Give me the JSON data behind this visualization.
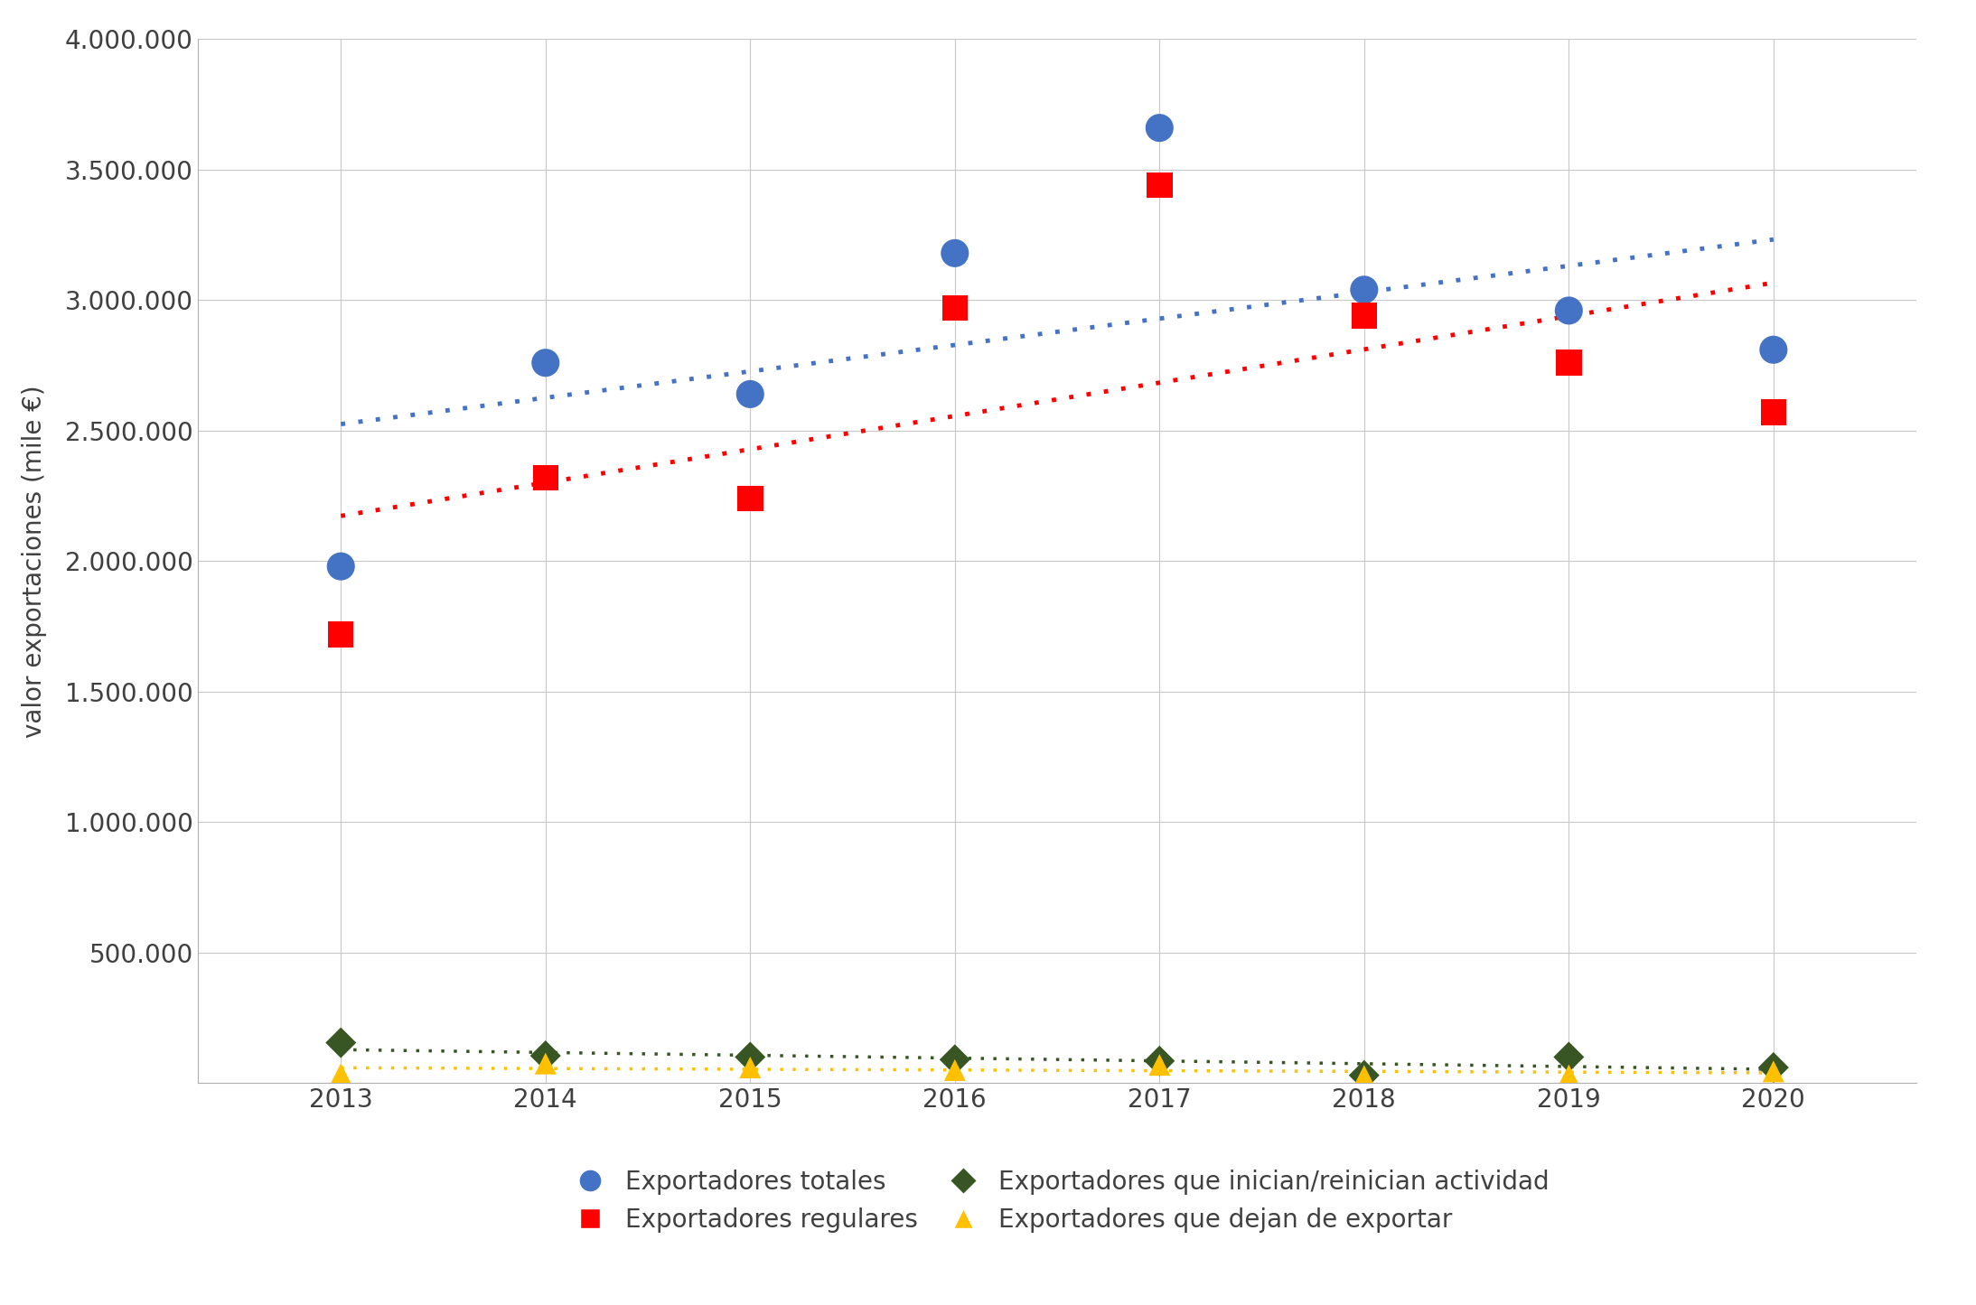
{
  "years": [
    2013,
    2014,
    2015,
    2016,
    2017,
    2018,
    2019,
    2020
  ],
  "totales": [
    1980000,
    2760000,
    2640000,
    3180000,
    3660000,
    3040000,
    2960000,
    2810000
  ],
  "regulares": [
    1720000,
    2320000,
    2240000,
    2970000,
    3440000,
    2940000,
    2760000,
    2570000
  ],
  "inician": [
    155000,
    105000,
    100000,
    90000,
    85000,
    30000,
    100000,
    60000
  ],
  "dejan": [
    35000,
    75000,
    60000,
    50000,
    70000,
    28000,
    30000,
    45000
  ],
  "color_totales": "#4472C4",
  "color_regulares": "#FF0000",
  "color_inician": "#375623",
  "color_dejan": "#FFC000",
  "ylabel": "valor exportaciones (mile €)",
  "ylim_min": 0,
  "ylim_max": 4000000,
  "yticks": [
    0,
    500000,
    1000000,
    1500000,
    2000000,
    2500000,
    3000000,
    3500000,
    4000000
  ],
  "ytick_labels": [
    "",
    "500.000",
    "1.000.000",
    "1.500.000",
    "2.000.000",
    "2.500.000",
    "3.000.000",
    "3.500.000",
    "4.000.000"
  ],
  "legend_totales": "Exportadores totales",
  "legend_regulares": "Exportadores regulares",
  "legend_inician": "Exportadores que inician/reinician actividad",
  "legend_dejan": "Exportadores que dejan de exportar",
  "background_color": "#FFFFFF",
  "grid_color": "#C8C8C8",
  "spine_color": "#B0B0B0"
}
